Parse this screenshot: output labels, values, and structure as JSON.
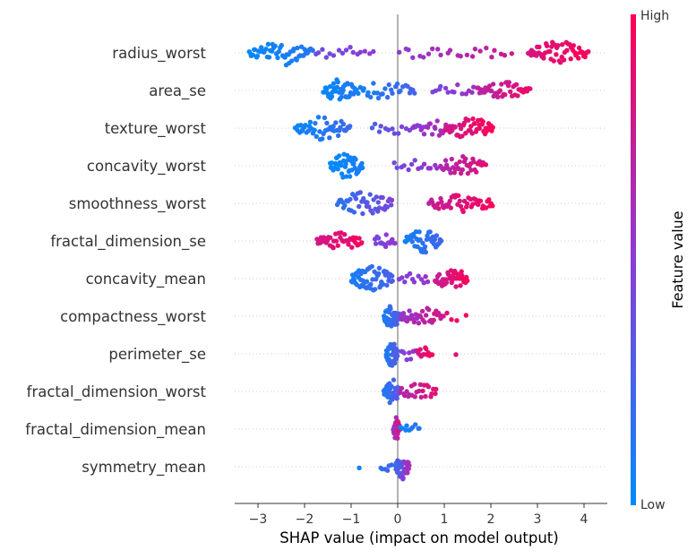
{
  "chart_data": {
    "type": "scatter",
    "subtype": "beeswarm",
    "xlabel": "SHAP value (impact on model output)",
    "xlim": [
      -3.5,
      4.5
    ],
    "xticks": [
      -3,
      -2,
      -1,
      0,
      1,
      2,
      3,
      4
    ],
    "xtick_labels": [
      "−3",
      "−2",
      "−1",
      "0",
      "1",
      "2",
      "3",
      "4"
    ],
    "zero_line": true,
    "grid": false,
    "colorbar": {
      "title": "Feature value",
      "high_label": "High",
      "low_label": "Low",
      "high_color": "#ff0052",
      "mid_color": "#8a3cd6",
      "low_color": "#008bfb"
    },
    "features": [
      {
        "name": "radius_worst",
        "clusters": [
          {
            "from": -3.2,
            "to": -1.8,
            "n": 55,
            "lo": 0.0,
            "hi": 0.15,
            "spread": 1.0
          },
          {
            "from": -1.8,
            "to": -0.5,
            "n": 16,
            "lo": 0.35,
            "hi": 0.55,
            "spread": 0.35
          },
          {
            "from": 0.0,
            "to": 1.0,
            "n": 10,
            "lo": 0.45,
            "hi": 0.65,
            "spread": 0.3
          },
          {
            "from": 1.0,
            "to": 2.5,
            "n": 14,
            "lo": 0.6,
            "hi": 0.8,
            "spread": 0.3
          },
          {
            "from": 2.8,
            "to": 4.1,
            "n": 55,
            "lo": 0.8,
            "hi": 1.0,
            "spread": 0.9
          }
        ]
      },
      {
        "name": "area_se",
        "clusters": [
          {
            "from": -1.6,
            "to": -0.9,
            "n": 40,
            "lo": 0.0,
            "hi": 0.15,
            "spread": 0.9
          },
          {
            "from": -0.9,
            "to": 0.4,
            "n": 30,
            "lo": 0.0,
            "hi": 0.3,
            "spread": 0.6
          },
          {
            "from": 0.7,
            "to": 1.7,
            "n": 14,
            "lo": 0.4,
            "hi": 0.6,
            "spread": 0.35
          },
          {
            "from": 1.7,
            "to": 2.85,
            "n": 45,
            "lo": 0.65,
            "hi": 0.95,
            "spread": 0.6
          }
        ]
      },
      {
        "name": "texture_worst",
        "clusters": [
          {
            "from": -2.2,
            "to": -1.0,
            "n": 45,
            "lo": 0.0,
            "hi": 0.25,
            "spread": 0.9
          },
          {
            "from": -0.6,
            "to": 0.3,
            "n": 12,
            "lo": 0.25,
            "hi": 0.5,
            "spread": 0.4
          },
          {
            "from": 0.3,
            "to": 1.2,
            "n": 25,
            "lo": 0.45,
            "hi": 0.75,
            "spread": 0.6
          },
          {
            "from": 1.0,
            "to": 2.05,
            "n": 50,
            "lo": 0.75,
            "hi": 1.0,
            "spread": 0.8
          }
        ]
      },
      {
        "name": "concavity_worst",
        "clusters": [
          {
            "from": -1.45,
            "to": -0.75,
            "n": 45,
            "lo": 0.0,
            "hi": 0.1,
            "spread": 1.0
          },
          {
            "from": -0.1,
            "to": 0.9,
            "n": 14,
            "lo": 0.35,
            "hi": 0.6,
            "spread": 0.3
          },
          {
            "from": 0.9,
            "to": 1.9,
            "n": 40,
            "lo": 0.6,
            "hi": 0.9,
            "spread": 0.7
          }
        ]
      },
      {
        "name": "smoothness_worst",
        "clusters": [
          {
            "from": -1.3,
            "to": -0.1,
            "n": 45,
            "lo": 0.1,
            "hi": 0.5,
            "spread": 0.9
          },
          {
            "from": 0.65,
            "to": 2.05,
            "n": 50,
            "lo": 0.7,
            "hi": 1.0,
            "spread": 0.6
          }
        ]
      },
      {
        "name": "fractal_dimension_se",
        "clusters": [
          {
            "from": -1.75,
            "to": -0.75,
            "n": 40,
            "lo": 0.75,
            "hi": 1.0,
            "spread": 0.6
          },
          {
            "from": -0.5,
            "to": -0.05,
            "n": 16,
            "lo": 0.4,
            "hi": 0.55,
            "spread": 0.6
          },
          {
            "from": 0.15,
            "to": 0.95,
            "n": 45,
            "lo": 0.05,
            "hi": 0.25,
            "spread": 0.9
          }
        ]
      },
      {
        "name": "concavity_mean",
        "clusters": [
          {
            "from": -1.0,
            "to": -0.1,
            "n": 60,
            "lo": 0.05,
            "hi": 0.3,
            "spread": 1.0
          },
          {
            "from": 0.0,
            "to": 0.7,
            "n": 12,
            "lo": 0.4,
            "hi": 0.6,
            "spread": 0.3
          },
          {
            "from": 0.8,
            "to": 1.5,
            "n": 40,
            "lo": 0.7,
            "hi": 1.0,
            "spread": 0.8
          }
        ]
      },
      {
        "name": "compactness_worst",
        "clusters": [
          {
            "from": -0.3,
            "to": 0.05,
            "n": 40,
            "lo": 0.05,
            "hi": 0.35,
            "spread": 1.0
          },
          {
            "from": 0.05,
            "to": 1.0,
            "n": 35,
            "lo": 0.5,
            "hi": 0.85,
            "spread": 0.6
          },
          {
            "from": 1.0,
            "to": 1.5,
            "n": 4,
            "lo": 0.85,
            "hi": 1.0,
            "spread": 0.2
          }
        ]
      },
      {
        "name": "perimeter_se",
        "clusters": [
          {
            "from": -0.25,
            "to": 0.0,
            "n": 45,
            "lo": 0.05,
            "hi": 0.35,
            "spread": 1.0
          },
          {
            "from": 0.05,
            "to": 0.4,
            "n": 8,
            "lo": 0.4,
            "hi": 0.6,
            "spread": 0.4
          },
          {
            "from": 0.4,
            "to": 0.75,
            "n": 14,
            "lo": 0.75,
            "hi": 1.0,
            "spread": 0.4
          },
          {
            "from": 1.2,
            "to": 1.3,
            "n": 1,
            "lo": 0.8,
            "hi": 0.9,
            "spread": 0.0
          }
        ]
      },
      {
        "name": "fractal_dimension_worst",
        "clusters": [
          {
            "from": -0.3,
            "to": 0.05,
            "n": 40,
            "lo": 0.05,
            "hi": 0.4,
            "spread": 1.0
          },
          {
            "from": 0.05,
            "to": 0.85,
            "n": 25,
            "lo": 0.6,
            "hi": 0.95,
            "spread": 0.5
          }
        ]
      },
      {
        "name": "fractal_dimension_mean",
        "clusters": [
          {
            "from": -0.1,
            "to": 0.05,
            "n": 30,
            "lo": 0.5,
            "hi": 0.9,
            "spread": 1.0
          },
          {
            "from": 0.05,
            "to": 0.5,
            "n": 10,
            "lo": 0.0,
            "hi": 0.2,
            "spread": 0.3
          }
        ]
      },
      {
        "name": "symmetry_mean",
        "clusters": [
          {
            "from": -0.85,
            "to": -0.8,
            "n": 1,
            "lo": 0.05,
            "hi": 0.1,
            "spread": 0.0
          },
          {
            "from": -0.4,
            "to": -0.1,
            "n": 6,
            "lo": 0.1,
            "hi": 0.3,
            "spread": 0.3
          },
          {
            "from": -0.05,
            "to": 0.25,
            "n": 40,
            "lo": 0.1,
            "hi": 0.7,
            "spread": 1.0
          }
        ]
      }
    ]
  }
}
